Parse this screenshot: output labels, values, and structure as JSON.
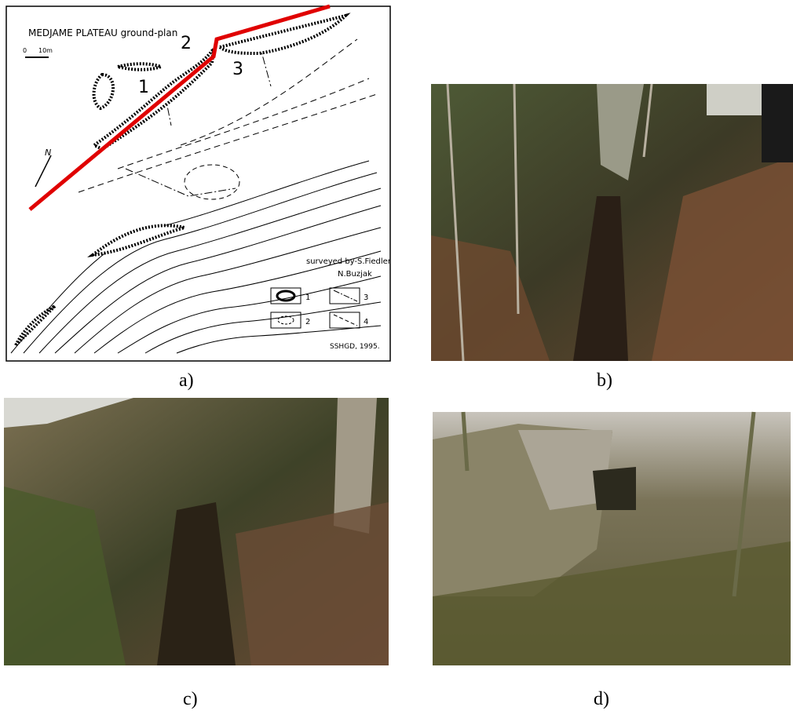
{
  "map": {
    "title": "MEDJAME PLATEAU  ground-plan",
    "scale_start": "0",
    "scale_end": "10m",
    "north": "N",
    "cave_labels": [
      "1",
      "2",
      "3"
    ],
    "credit": [
      "surveyed by-S.Fiedler",
      "N.Buzjak"
    ],
    "legend": [
      "1",
      "2",
      "3",
      "4"
    ],
    "source": "SSHGD, 1995."
  },
  "captions": [
    "a)",
    "b)",
    "c)",
    "d)"
  ]
}
